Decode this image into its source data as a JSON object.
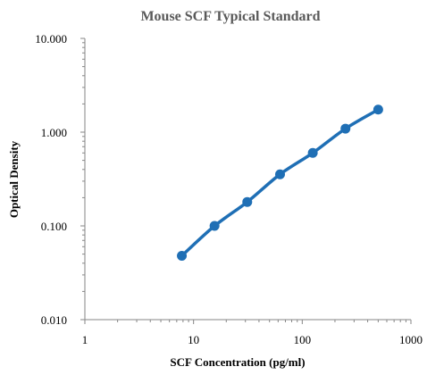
{
  "chart_data": {
    "type": "scatter",
    "title": "Mouse SCF Typical Standard",
    "xlabel": "SCF Concentration (pg/ml)",
    "ylabel": "Optical Density",
    "x_scale": "log",
    "y_scale": "log",
    "xlim": [
      1,
      1000
    ],
    "ylim": [
      0.01,
      10
    ],
    "x_ticks": [
      "1",
      "10",
      "100",
      "1000"
    ],
    "y_ticks": [
      "0.010",
      "0.100",
      "1.000",
      "10.000"
    ],
    "grid": false,
    "series": [
      {
        "x": [
          7.8,
          15.6,
          31.2,
          62.5,
          125,
          250,
          500
        ],
        "y": [
          0.048,
          0.1,
          0.18,
          0.355,
          0.6,
          1.09,
          1.74
        ],
        "color": "#1f6fb5",
        "trendline": true
      }
    ]
  }
}
